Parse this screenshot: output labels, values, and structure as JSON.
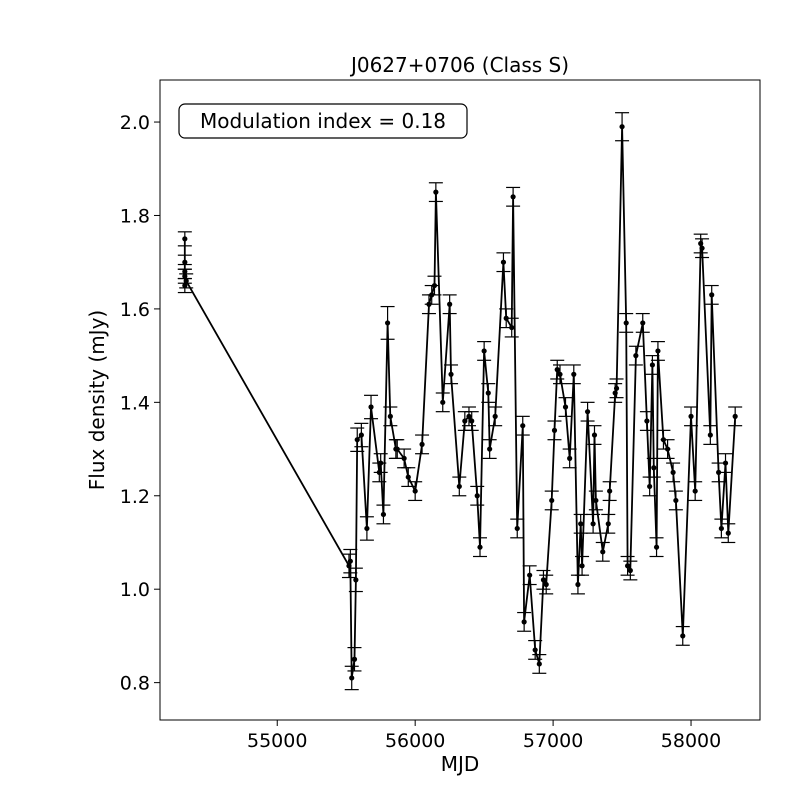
{
  "chart_data": {
    "type": "line",
    "title": "J0627+0706 (Class S)",
    "xlabel": "MJD",
    "ylabel": "Flux density (mJy)",
    "annotation": "Modulation index = 0.18",
    "xlim": [
      54150,
      58500
    ],
    "ylim": [
      0.72,
      2.09
    ],
    "xticks": [
      55000,
      56000,
      57000,
      58000
    ],
    "yticks": [
      0.8,
      1.0,
      1.2,
      1.4,
      1.6,
      1.8,
      2.0
    ],
    "grid": false,
    "marker": "dot",
    "error_bars": true,
    "line_color": "#000000",
    "series": [
      {
        "x": [
          54330,
          54330,
          54330,
          54330,
          54330,
          54340,
          55520,
          55530,
          55540,
          55560,
          55570,
          55580,
          55610,
          55650,
          55680,
          55740,
          55750,
          55770,
          55800,
          55820,
          55860,
          55870,
          55920,
          55950,
          56000,
          56050,
          56100,
          56120,
          56140,
          56150,
          56200,
          56250,
          56260,
          56320,
          56360,
          56390,
          56410,
          56450,
          56470,
          56500,
          56530,
          56540,
          56580,
          56640,
          56660,
          56700,
          56710,
          56740,
          56780,
          56790,
          56830,
          56870,
          56900,
          56930,
          56950,
          56990,
          57010,
          57030,
          57050,
          57090,
          57120,
          57150,
          57180,
          57200,
          57210,
          57250,
          57290,
          57300,
          57310,
          57360,
          57400,
          57410,
          57450,
          57460,
          57500,
          57530,
          57540,
          57560,
          57600,
          57650,
          57680,
          57700,
          57720,
          57730,
          57750,
          57760,
          57800,
          57830,
          57870,
          57890,
          57940,
          58000,
          58030,
          58070,
          58080,
          58140,
          58150,
          58200,
          58220,
          58250,
          58270,
          58320
        ],
        "y": [
          1.75,
          1.7,
          1.67,
          1.65,
          1.68,
          1.66,
          1.05,
          1.06,
          0.81,
          0.85,
          1.02,
          1.32,
          1.33,
          1.13,
          1.39,
          1.25,
          1.27,
          1.16,
          1.57,
          1.37,
          1.3,
          1.3,
          1.28,
          1.24,
          1.21,
          1.31,
          1.61,
          1.63,
          1.65,
          1.85,
          1.4,
          1.61,
          1.46,
          1.22,
          1.36,
          1.37,
          1.36,
          1.2,
          1.09,
          1.51,
          1.42,
          1.3,
          1.37,
          1.7,
          1.58,
          1.56,
          1.84,
          1.13,
          1.35,
          0.93,
          1.03,
          0.87,
          0.84,
          1.02,
          1.01,
          1.19,
          1.34,
          1.47,
          1.46,
          1.39,
          1.28,
          1.46,
          1.01,
          1.14,
          1.05,
          1.38,
          1.14,
          1.33,
          1.19,
          1.08,
          1.14,
          1.21,
          1.42,
          1.43,
          1.99,
          1.57,
          1.05,
          1.04,
          1.5,
          1.57,
          1.36,
          1.22,
          1.48,
          1.26,
          1.09,
          1.51,
          1.32,
          1.3,
          1.25,
          1.19,
          0.9,
          1.37,
          1.21,
          1.74,
          1.73,
          1.33,
          1.63,
          1.25,
          1.13,
          1.27,
          1.12,
          1.37
        ],
        "err": [
          0.015,
          0.015,
          0.015,
          0.015,
          0.015,
          0.015,
          0.025,
          0.025,
          0.025,
          0.025,
          0.025,
          0.025,
          0.025,
          0.025,
          0.025,
          0.02,
          0.02,
          0.02,
          0.035,
          0.02,
          0.02,
          0.02,
          0.02,
          0.02,
          0.02,
          0.02,
          0.02,
          0.02,
          0.02,
          0.02,
          0.02,
          0.02,
          0.02,
          0.02,
          0.02,
          0.02,
          0.02,
          0.02,
          0.02,
          0.02,
          0.02,
          0.02,
          0.02,
          0.02,
          0.02,
          0.02,
          0.02,
          0.02,
          0.02,
          0.02,
          0.02,
          0.02,
          0.02,
          0.02,
          0.02,
          0.02,
          0.02,
          0.02,
          0.02,
          0.02,
          0.02,
          0.02,
          0.02,
          0.02,
          0.02,
          0.02,
          0.02,
          0.02,
          0.02,
          0.02,
          0.02,
          0.02,
          0.02,
          0.02,
          0.03,
          0.02,
          0.02,
          0.02,
          0.02,
          0.02,
          0.02,
          0.02,
          0.02,
          0.02,
          0.02,
          0.02,
          0.02,
          0.02,
          0.02,
          0.02,
          0.02,
          0.02,
          0.02,
          0.02,
          0.02,
          0.02,
          0.02,
          0.02,
          0.02,
          0.02,
          0.02,
          0.02
        ]
      }
    ]
  }
}
